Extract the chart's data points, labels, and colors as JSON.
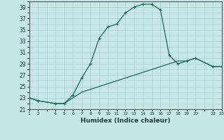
{
  "xlabel": "Humidex (Indice chaleur)",
  "bg_color": "#c5e8e5",
  "grid_color": "#b0cccc",
  "line_color": "#1a6b5a",
  "xlim": [
    1,
    23
  ],
  "ylim": [
    21,
    40
  ],
  "x_ticks": [
    1,
    2,
    4,
    5,
    6,
    7,
    8,
    9,
    10,
    11,
    12,
    13,
    14,
    15,
    16,
    17,
    18,
    19,
    20,
    22,
    23
  ],
  "y_ticks": [
    21,
    23,
    25,
    27,
    29,
    31,
    33,
    35,
    37,
    39
  ],
  "line1_x": [
    1,
    2,
    4,
    5,
    6,
    7,
    8,
    9,
    10,
    11,
    12,
    13,
    14,
    15,
    16,
    17,
    18,
    19,
    20,
    22,
    23
  ],
  "line1_y": [
    23.0,
    22.5,
    22.0,
    22.0,
    23.5,
    26.5,
    29.0,
    33.5,
    35.5,
    36.0,
    38.0,
    39.0,
    39.5,
    39.5,
    38.5,
    30.5,
    29.0,
    29.5,
    30.0,
    28.5,
    28.5
  ],
  "line2_x": [
    1,
    2,
    4,
    5,
    6,
    7,
    8,
    9,
    10,
    11,
    12,
    13,
    14,
    15,
    16,
    17,
    18,
    19,
    20,
    22,
    23
  ],
  "line2_y": [
    23.0,
    22.5,
    22.0,
    22.0,
    23.0,
    24.0,
    24.5,
    25.0,
    25.5,
    26.0,
    26.5,
    27.0,
    27.5,
    28.0,
    28.5,
    29.0,
    29.5,
    29.5,
    30.0,
    28.5,
    28.5
  ]
}
